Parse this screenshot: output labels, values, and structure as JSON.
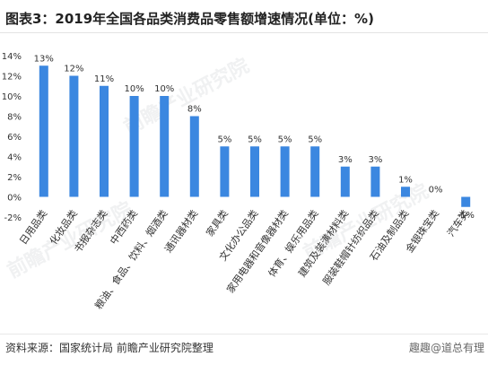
{
  "header": {
    "title": "图表3：2019年全国各品类消费品零售额增速情况(单位：%)"
  },
  "footer": {
    "source": "资料来源：国家统计局 前瞻产业研究院整理",
    "watermark": "趣趣@道总有理"
  },
  "background_marks": [
    "前瞻产业研究院",
    "前瞻产业研究院",
    "前瞻产业研究院"
  ],
  "colors": {
    "bar": "#3b87e0",
    "axis_text": "#333333",
    "grid": "#e6e6e6"
  },
  "chart_data": {
    "type": "bar",
    "title": "图表3：2019年全国各品类消费品零售额增速情况(单位：%)",
    "categories": [
      "日用品类",
      "化妆品类",
      "书报杂志类",
      "中西药类",
      "粮油、食品、饮料、烟酒类",
      "通讯器材类",
      "家具类",
      "文化办公品类",
      "家用电器和音像器材类",
      "体育、娱乐用品类",
      "建筑及装潢材料类",
      "服装鞋帽针纺织品类",
      "石油及制品类",
      "金银珠宝类",
      "汽车类"
    ],
    "values": [
      13,
      12,
      11,
      10,
      10,
      8,
      5,
      5,
      5,
      5,
      3,
      3,
      1,
      0,
      -1
    ],
    "value_labels": [
      "13%",
      "12%",
      "11%",
      "10%",
      "10%",
      "8%",
      "5%",
      "5%",
      "5%",
      "5%",
      "3%",
      "3%",
      "1%",
      "0%",
      "-1%"
    ],
    "yticks": [
      -2,
      0,
      2,
      4,
      6,
      8,
      10,
      12,
      14
    ],
    "ytick_labels": [
      "-2%",
      "0%",
      "2%",
      "4%",
      "6%",
      "8%",
      "10%",
      "12%",
      "14%"
    ],
    "ylim": [
      -2,
      14
    ],
    "xlabel": "",
    "ylabel": "",
    "grid": false,
    "legend": "none"
  }
}
